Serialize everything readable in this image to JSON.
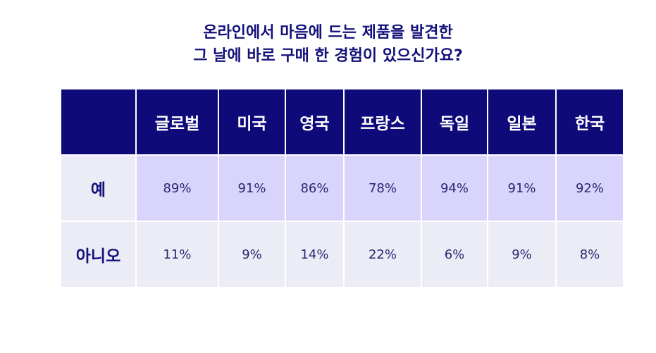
{
  "title": {
    "line1": "온라인에서 마음에 드는 제품을 발견한",
    "line2": "그 날에 바로 구매 한 경험이 있으신가요?"
  },
  "colors": {
    "header_bg": "#0f0a7a",
    "yes_row_bg": "#d9d4fb",
    "no_row_bg": "#ececf7",
    "title_text": "#14117a"
  },
  "chart_data": {
    "type": "table",
    "columns": [
      "글로벌",
      "미국",
      "영국",
      "프랑스",
      "독일",
      "일본",
      "한국"
    ],
    "rows": [
      {
        "label": "예",
        "values": [
          "89%",
          "91%",
          "86%",
          "78%",
          "94%",
          "91%",
          "92%"
        ]
      },
      {
        "label": "아니오",
        "values": [
          "11%",
          "9%",
          "14%",
          "22%",
          "6%",
          "9%",
          "8%"
        ]
      }
    ]
  }
}
